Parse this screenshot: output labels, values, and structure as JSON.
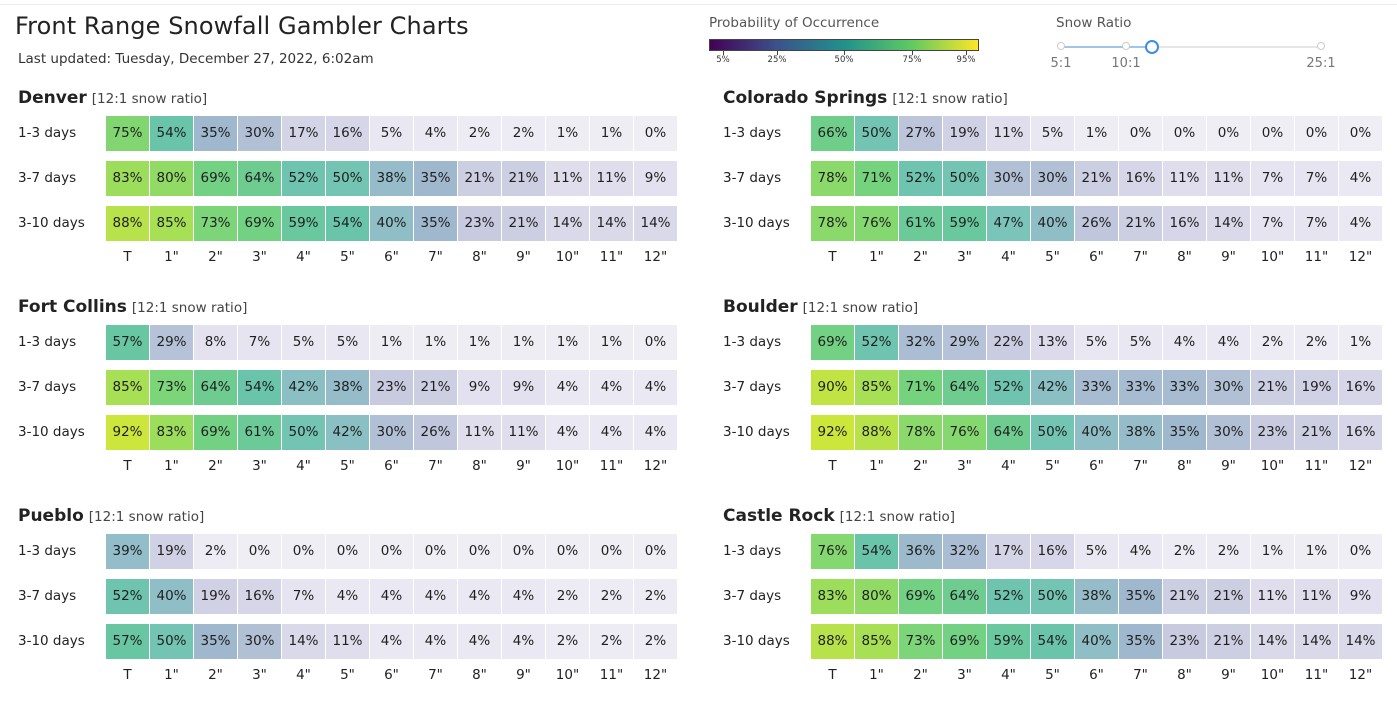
{
  "header": {
    "title": "Front Range Snowfall Gambler Charts",
    "last_updated": "Last updated: Tuesday, December 27, 2022, 6:02am"
  },
  "legend": {
    "title": "Probability of Occurrence",
    "ticks": [
      "5%",
      "25%",
      "50%",
      "75%",
      "95%"
    ],
    "tick_values": [
      5,
      25,
      50,
      75,
      95
    ],
    "colors": [
      "#440154",
      "#3b528b",
      "#21918c",
      "#5ec962",
      "#fde725"
    ]
  },
  "snow_ratio": {
    "title": "Snow Ratio",
    "min": 5,
    "max": 25,
    "selected": 12,
    "labels": [
      "5:1",
      "10:1",
      "25:1"
    ],
    "marks": [
      5,
      10,
      25
    ]
  },
  "chart_data": [
    {
      "type": "heatmap",
      "title": "Denver",
      "subtitle": "[12:1 snow ratio]",
      "rows": [
        "1-3 days",
        "3-7 days",
        "3-10 days"
      ],
      "columns": [
        "T",
        "1\"",
        "2\"",
        "3\"",
        "4\"",
        "5\"",
        "6\"",
        "7\"",
        "8\"",
        "9\"",
        "10\"",
        "11\"",
        "12\""
      ],
      "values": [
        [
          75,
          54,
          35,
          30,
          17,
          16,
          5,
          4,
          2,
          2,
          1,
          1,
          0
        ],
        [
          83,
          80,
          69,
          64,
          52,
          50,
          38,
          35,
          21,
          21,
          11,
          11,
          9
        ],
        [
          88,
          85,
          73,
          69,
          59,
          54,
          40,
          35,
          23,
          21,
          14,
          14,
          14
        ]
      ]
    },
    {
      "type": "heatmap",
      "title": "Colorado Springs",
      "subtitle": "[12:1 snow ratio]",
      "rows": [
        "1-3 days",
        "3-7 days",
        "3-10 days"
      ],
      "columns": [
        "T",
        "1\"",
        "2\"",
        "3\"",
        "4\"",
        "5\"",
        "6\"",
        "7\"",
        "8\"",
        "9\"",
        "10\"",
        "11\"",
        "12\""
      ],
      "values": [
        [
          66,
          50,
          27,
          19,
          11,
          5,
          1,
          0,
          0,
          0,
          0,
          0,
          0
        ],
        [
          78,
          71,
          52,
          50,
          30,
          30,
          21,
          16,
          11,
          11,
          7,
          7,
          4
        ],
        [
          78,
          76,
          61,
          59,
          47,
          40,
          26,
          21,
          16,
          14,
          7,
          7,
          4
        ]
      ]
    },
    {
      "type": "heatmap",
      "title": "Fort Collins",
      "subtitle": "[12:1 snow ratio]",
      "rows": [
        "1-3 days",
        "3-7 days",
        "3-10 days"
      ],
      "columns": [
        "T",
        "1\"",
        "2\"",
        "3\"",
        "4\"",
        "5\"",
        "6\"",
        "7\"",
        "8\"",
        "9\"",
        "10\"",
        "11\"",
        "12\""
      ],
      "values": [
        [
          57,
          29,
          8,
          7,
          5,
          5,
          1,
          1,
          1,
          1,
          1,
          1,
          0
        ],
        [
          85,
          73,
          64,
          54,
          42,
          38,
          23,
          21,
          9,
          9,
          4,
          4,
          4
        ],
        [
          92,
          83,
          69,
          61,
          50,
          42,
          30,
          26,
          11,
          11,
          4,
          4,
          4
        ]
      ]
    },
    {
      "type": "heatmap",
      "title": "Boulder",
      "subtitle": "[12:1 snow ratio]",
      "rows": [
        "1-3 days",
        "3-7 days",
        "3-10 days"
      ],
      "columns": [
        "T",
        "1\"",
        "2\"",
        "3\"",
        "4\"",
        "5\"",
        "6\"",
        "7\"",
        "8\"",
        "9\"",
        "10\"",
        "11\"",
        "12\""
      ],
      "values": [
        [
          69,
          52,
          32,
          29,
          22,
          13,
          5,
          5,
          4,
          4,
          2,
          2,
          1
        ],
        [
          90,
          85,
          71,
          64,
          52,
          42,
          33,
          33,
          33,
          30,
          21,
          19,
          16
        ],
        [
          92,
          88,
          78,
          76,
          64,
          50,
          40,
          38,
          35,
          30,
          23,
          21,
          16
        ]
      ]
    },
    {
      "type": "heatmap",
      "title": "Pueblo",
      "subtitle": "[12:1 snow ratio]",
      "rows": [
        "1-3 days",
        "3-7 days",
        "3-10 days"
      ],
      "columns": [
        "T",
        "1\"",
        "2\"",
        "3\"",
        "4\"",
        "5\"",
        "6\"",
        "7\"",
        "8\"",
        "9\"",
        "10\"",
        "11\"",
        "12\""
      ],
      "values": [
        [
          39,
          19,
          2,
          0,
          0,
          0,
          0,
          0,
          0,
          0,
          0,
          0,
          0
        ],
        [
          52,
          40,
          19,
          16,
          7,
          4,
          4,
          4,
          4,
          4,
          2,
          2,
          2
        ],
        [
          57,
          50,
          35,
          30,
          14,
          11,
          4,
          4,
          4,
          4,
          2,
          2,
          2
        ]
      ]
    },
    {
      "type": "heatmap",
      "title": "Castle Rock",
      "subtitle": "[12:1 snow ratio]",
      "rows": [
        "1-3 days",
        "3-7 days",
        "3-10 days"
      ],
      "columns": [
        "T",
        "1\"",
        "2\"",
        "3\"",
        "4\"",
        "5\"",
        "6\"",
        "7\"",
        "8\"",
        "9\"",
        "10\"",
        "11\"",
        "12\""
      ],
      "values": [
        [
          76,
          54,
          36,
          32,
          17,
          16,
          5,
          4,
          2,
          2,
          1,
          1,
          0
        ],
        [
          83,
          80,
          69,
          64,
          52,
          50,
          38,
          35,
          21,
          21,
          11,
          11,
          9
        ],
        [
          88,
          85,
          73,
          69,
          59,
          54,
          40,
          35,
          23,
          21,
          14,
          14,
          14
        ]
      ]
    }
  ]
}
